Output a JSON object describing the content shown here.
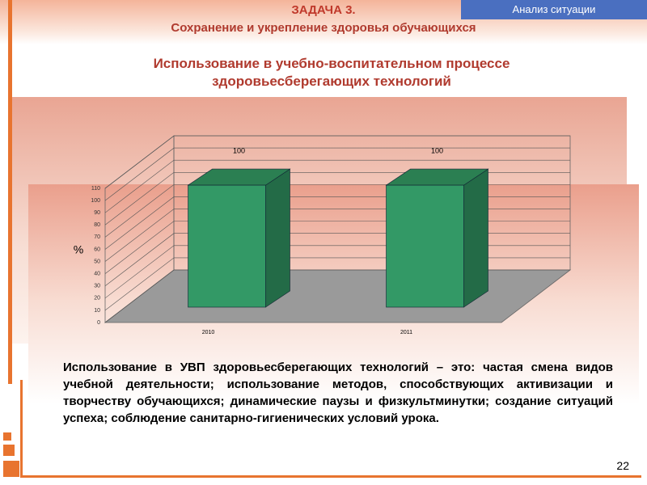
{
  "header": {
    "task": "ЗАДАЧА 3.",
    "subtitle": "Сохранение и укрепление здоровья обучающихся",
    "tab": "Анализ ситуации"
  },
  "chart_data": {
    "type": "bar",
    "title": "Использование в учебно-воспитательном процессе здоровьесберегающих технологий",
    "y_label": "%",
    "categories": [
      "2010",
      "2011"
    ],
    "values": [
      100,
      100
    ],
    "color": "#339966",
    "ylim": [
      0,
      110
    ],
    "yticks": [
      0,
      10,
      20,
      30,
      40,
      50,
      60,
      70,
      80,
      90,
      100,
      110
    ],
    "grid": true
  },
  "body": {
    "text": "Использование в УВП здоровьесберегающих технологий – это: частая смена видов учебной деятельности; использование методов, способствующих активизации и творчеству обучающихся; динамические паузы и физкультминутки; создание ситуаций успеха;  соблюдение санитарно-гигиенических условий урока."
  },
  "page_number": "22"
}
